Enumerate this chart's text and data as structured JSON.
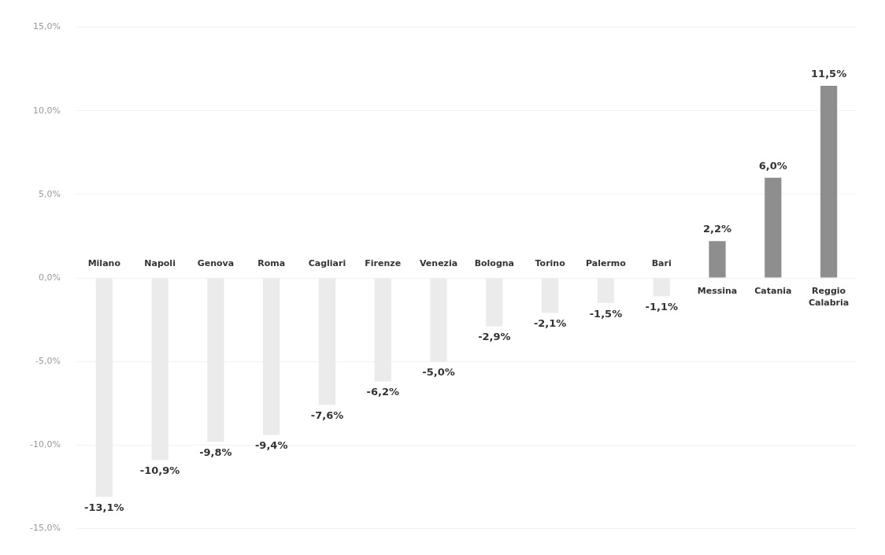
{
  "chart_data": {
    "type": "bar",
    "categories": [
      "Milano",
      "Napoli",
      "Genova",
      "Roma",
      "Cagliari",
      "Firenze",
      "Venezia",
      "Bologna",
      "Torino",
      "Palermo",
      "Bari",
      "Messina",
      "Catania",
      "Reggio Calabria"
    ],
    "values": [
      -13.1,
      -10.9,
      -9.8,
      -9.4,
      -7.6,
      -6.2,
      -5.0,
      -2.9,
      -2.1,
      -1.5,
      -1.1,
      2.2,
      6.0,
      11.5
    ],
    "colors": [
      "#ebebeb",
      "#ebebeb",
      "#ebebeb",
      "#ebebeb",
      "#ebebeb",
      "#ebebeb",
      "#ebebeb",
      "#ebebeb",
      "#ebebeb",
      "#ebebeb",
      "#ebebeb",
      "#8e8e8e",
      "#8e8e8e",
      "#8e8e8e"
    ],
    "value_labels": [
      "-13,1%",
      "-10,9%",
      "-9,8%",
      "-9,4%",
      "-7,6%",
      "-6,2%",
      "-5,0%",
      "-2,9%",
      "-2,1%",
      "-1,5%",
      "-1,1%",
      "2,2%",
      "6,0%",
      "11,5%"
    ],
    "ylim": [
      -15,
      15
    ],
    "yticks": [
      {
        "value": 15,
        "label": "15,0%"
      },
      {
        "value": 10,
        "label": "10,0%"
      },
      {
        "value": 5,
        "label": "5,0%"
      },
      {
        "value": 0,
        "label": "0,0%"
      },
      {
        "value": -5,
        "label": "-5,0%"
      },
      {
        "value": -10,
        "label": "-10,0%"
      },
      {
        "value": -15,
        "label": "-15,0%"
      }
    ],
    "grid": "y",
    "legend": false
  }
}
